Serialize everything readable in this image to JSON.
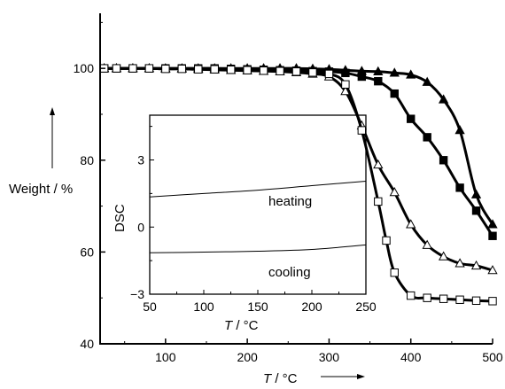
{
  "main_chart": {
    "type": "line",
    "title": "",
    "xlabel_var": "T",
    "xlabel_unit": " / °C",
    "ylabel": "Weight / %",
    "xlim": [
      20,
      500
    ],
    "ylim": [
      40,
      112
    ],
    "x_ticks": [
      100,
      200,
      300,
      400,
      500
    ],
    "y_ticks": [
      40,
      60,
      80,
      100
    ],
    "series": [
      {
        "marker": "filled-triangle",
        "x": [
          25,
          40,
          60,
          80,
          100,
          120,
          140,
          160,
          180,
          200,
          220,
          240,
          260,
          280,
          300,
          320,
          340,
          360,
          380,
          400,
          420,
          440,
          460,
          480,
          500
        ],
        "y": [
          100,
          100,
          100,
          100,
          100,
          100,
          100,
          100,
          100,
          100,
          100,
          100,
          100,
          99.9,
          99.8,
          99.6,
          99.4,
          99.3,
          99,
          98.6,
          97,
          93.2,
          86.5,
          72.5,
          66
        ]
      },
      {
        "marker": "filled-square",
        "x": [
          25,
          40,
          60,
          80,
          100,
          120,
          140,
          160,
          180,
          200,
          220,
          240,
          260,
          280,
          300,
          320,
          340,
          360,
          380,
          400,
          420,
          440,
          460,
          480,
          500
        ],
        "y": [
          100,
          100,
          100,
          100,
          100,
          100,
          100,
          100,
          99.9,
          99.8,
          99.7,
          99.6,
          99.5,
          99.4,
          99.3,
          99,
          98.2,
          97.2,
          94.5,
          89,
          85,
          80,
          74,
          69,
          63.5
        ]
      },
      {
        "marker": "open-triangle",
        "x": [
          25,
          40,
          60,
          80,
          100,
          120,
          140,
          160,
          180,
          200,
          220,
          240,
          260,
          280,
          300,
          320,
          340,
          360,
          380,
          400,
          420,
          440,
          460,
          480,
          500
        ],
        "y": [
          100,
          100,
          100,
          100,
          99.9,
          99.9,
          99.8,
          99.7,
          99.6,
          99.5,
          99.4,
          99.3,
          99.1,
          98.8,
          98.2,
          95,
          87.5,
          79,
          73,
          66,
          61.5,
          59,
          57.5,
          57,
          56
        ]
      },
      {
        "marker": "open-square",
        "x": [
          25,
          40,
          60,
          80,
          100,
          120,
          140,
          160,
          180,
          200,
          220,
          240,
          260,
          280,
          300,
          320,
          340,
          360,
          370,
          380,
          400,
          420,
          440,
          460,
          480,
          500
        ],
        "y": [
          100,
          100,
          100,
          100,
          99.9,
          99.9,
          99.8,
          99.8,
          99.7,
          99.6,
          99.5,
          99.4,
          99.3,
          99.1,
          98.8,
          96.5,
          86.5,
          71,
          62.5,
          55.5,
          50.5,
          50,
          49.8,
          49.6,
          49.4,
          49.3
        ]
      }
    ]
  },
  "inset_chart": {
    "type": "line",
    "title": "",
    "xlabel_var": "T",
    "xlabel_unit": " / °C",
    "ylabel": "DSC",
    "xlim": [
      50,
      250
    ],
    "ylim": [
      -3,
      5
    ],
    "x_ticks": [
      50,
      100,
      150,
      200,
      250
    ],
    "y_ticks": [
      -3,
      0,
      3
    ],
    "series": [
      {
        "label": "heating",
        "x": [
          50,
          100,
          150,
          200,
          250
        ],
        "y": [
          1.35,
          1.5,
          1.65,
          1.85,
          2.05
        ]
      },
      {
        "label": "cooling",
        "x": [
          50,
          100,
          150,
          200,
          250
        ],
        "y": [
          -1.15,
          -1.12,
          -1.08,
          -1.0,
          -0.8
        ]
      }
    ],
    "annotations": [
      {
        "text": "heating",
        "x": 175,
        "y": 1.1
      },
      {
        "text": "cooling",
        "x": 175,
        "y": -1.75
      }
    ]
  }
}
